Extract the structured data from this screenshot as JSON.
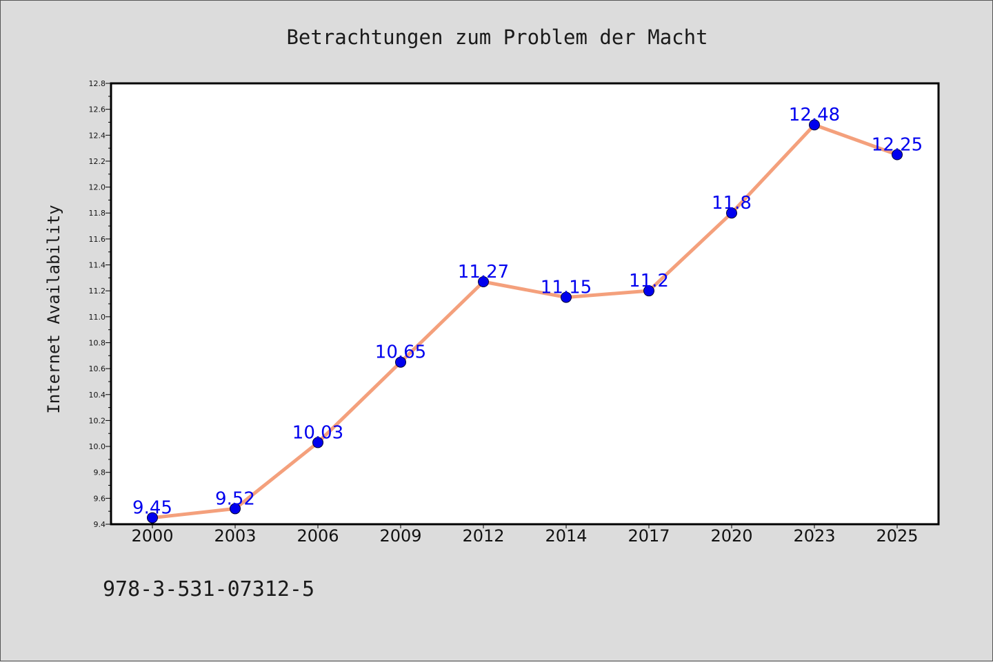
{
  "chart_data": {
    "type": "line",
    "title": "Betrachtungen zum Problem der Macht",
    "xlabel": "",
    "ylabel": "Internet Availability",
    "categories": [
      "2000",
      "2003",
      "2006",
      "2009",
      "2012",
      "2014",
      "2017",
      "2020",
      "2023",
      "2025"
    ],
    "series": [
      {
        "values": [
          9.45,
          9.52,
          10.03,
          10.65,
          11.27,
          11.15,
          11.2,
          11.8,
          12.48,
          12.25
        ],
        "labels": [
          "9.45",
          "9.52",
          "10.03",
          "10.65",
          "11.27",
          "11.15",
          "11.2",
          "11.8",
          "12.48",
          "12.25"
        ]
      }
    ],
    "ylim": [
      9.4,
      12.8
    ],
    "yticks": [
      "9.4",
      "9.6",
      "9.8",
      "10.0",
      "10.2",
      "10.4",
      "10.6",
      "10.8",
      "11.0",
      "11.2",
      "11.4",
      "11.6",
      "11.8",
      "12.0",
      "12.2",
      "12.4",
      "12.6",
      "12.8"
    ],
    "grid": false,
    "line_color": "#f4a07c",
    "marker_color": "#0000ee",
    "label_color": "#0000ee",
    "background_color": "#dcdcdc",
    "plot_background_color": "#ffffff"
  },
  "footer": {
    "isbn": "978-3-531-07312-5"
  }
}
